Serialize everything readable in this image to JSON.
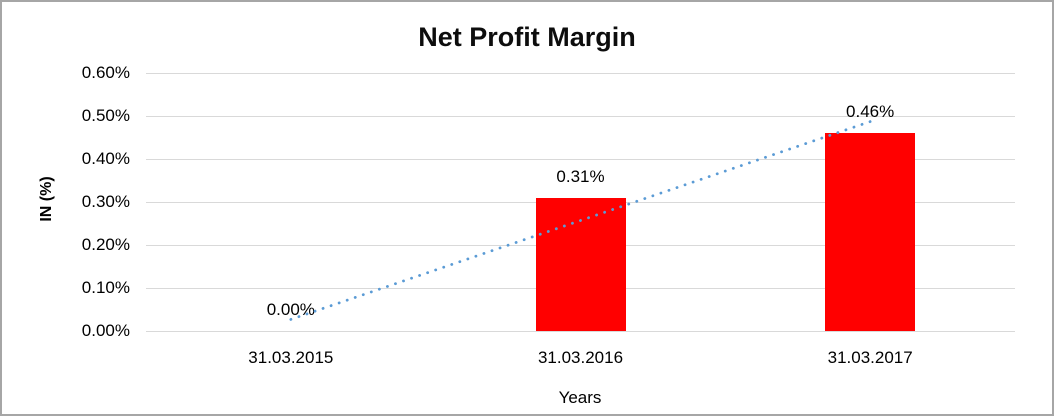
{
  "chart_data": {
    "type": "bar",
    "title": "Net Profit Margin",
    "xlabel": "Years",
    "ylabel": "IN (%)",
    "categories": [
      "31.03.2015",
      "31.03.2016",
      "31.03.2017"
    ],
    "values": [
      0.0,
      0.31,
      0.46
    ],
    "data_labels": [
      "0.00%",
      "0.31%",
      "0.46%"
    ],
    "y_ticks": [
      "0.00%",
      "0.10%",
      "0.20%",
      "0.30%",
      "0.40%",
      "0.50%",
      "0.60%"
    ],
    "ylim": [
      0,
      0.6
    ],
    "grid": true,
    "legend": "none",
    "bar_color": "#FF0000",
    "gridline_color": "#D9D9D9",
    "text_color": "#000000",
    "trendline": {
      "type": "linear",
      "style": "dotted",
      "color": "#5B9BD5",
      "start_value": 0.027,
      "end_value": 0.487
    }
  }
}
